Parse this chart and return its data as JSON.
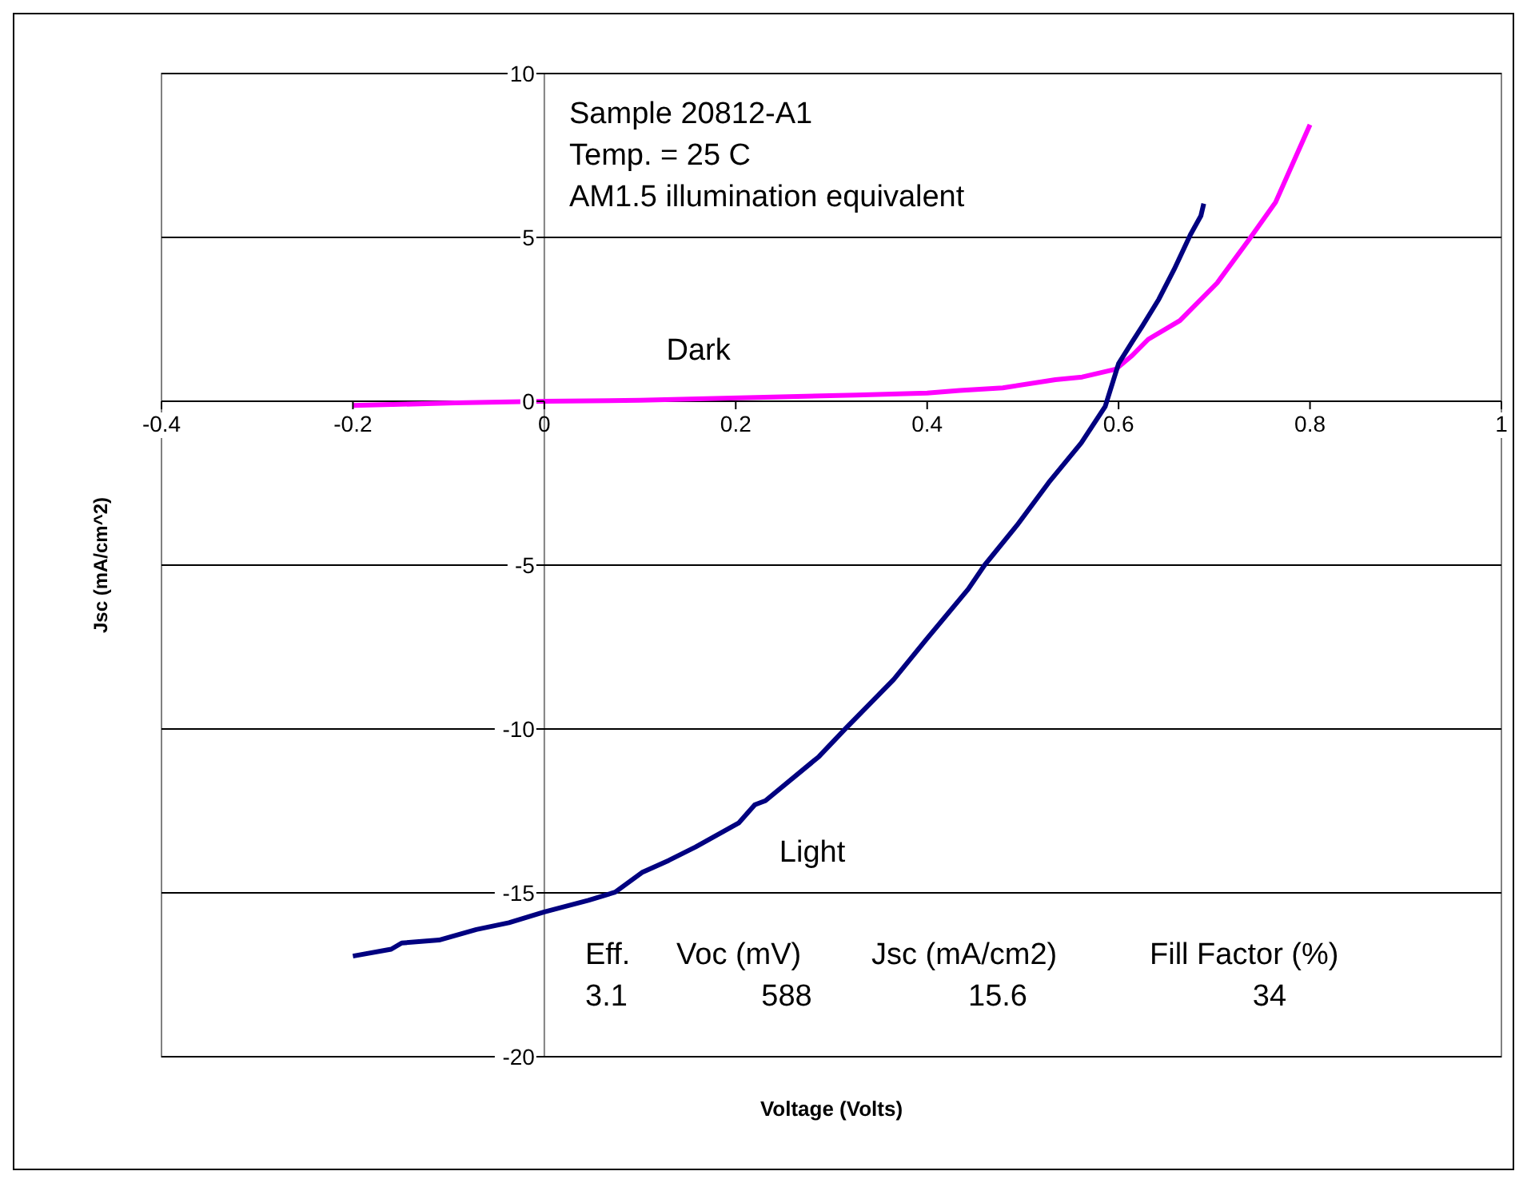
{
  "chart_data": {
    "type": "line",
    "xlabel": "Voltage (Volts)",
    "ylabel": "Jsc (mA/cm^2)",
    "xlim": [
      -0.4,
      1
    ],
    "xticks": [
      -0.4,
      -0.2,
      0,
      0.2,
      0.4,
      0.6,
      0.8,
      1
    ],
    "ylim": [
      -20,
      10
    ],
    "yticks": [
      -20,
      -15,
      -10,
      -5,
      0,
      5,
      10
    ],
    "grid": "y",
    "marker": "none",
    "line_style": "solid",
    "annotations": [
      "Sample 20812-A1",
      "Temp. = 25 C",
      "AM1.5 illumination equivalent",
      "Eff.",
      "Voc (mV)",
      "Jsc (mA/cm2)",
      "Fill Factor (%)",
      "3.1",
      "588",
      "15.6",
      "34"
    ],
    "series": [
      {
        "name": "Dark",
        "color": "#ff00ff",
        "x": [
          -0.2,
          -0.093,
          0,
          0.1,
          0.326,
          0.4,
          0.434,
          0.479,
          0.534,
          0.562,
          0.597,
          0.614,
          0.631,
          0.664,
          0.703,
          0.736,
          0.764,
          0.8
        ],
        "values": [
          -0.13,
          -0.05,
          0,
          0.03,
          0.19,
          0.25,
          0.33,
          0.41,
          0.66,
          0.74,
          0.98,
          1.39,
          1.89,
          2.46,
          3.61,
          4.92,
          6.07,
          8.44
        ]
      },
      {
        "name": "Light",
        "color": "#000080",
        "x": [
          -0.2,
          -0.16,
          -0.149,
          -0.11,
          -0.071,
          -0.037,
          0,
          0.046,
          0.074,
          0.102,
          0.13,
          0.158,
          0.203,
          0.22,
          0.231,
          0.287,
          0.315,
          0.365,
          0.399,
          0.443,
          0.46,
          0.494,
          0.527,
          0.561,
          0.586,
          0.6,
          0.614,
          0.625,
          0.642,
          0.658,
          0.675,
          0.686,
          0.689
        ],
        "values": [
          -16.93,
          -16.72,
          -16.53,
          -16.44,
          -16.12,
          -15.91,
          -15.58,
          -15.23,
          -14.98,
          -14.38,
          -14.01,
          -13.6,
          -12.87,
          -12.31,
          -12.19,
          -10.84,
          -9.98,
          -8.49,
          -7.27,
          -5.73,
          -5.0,
          -3.78,
          -2.48,
          -1.27,
          -0.16,
          1.15,
          1.8,
          2.3,
          3.11,
          4.02,
          5.08,
          5.66,
          6.03
        ]
      }
    ]
  }
}
